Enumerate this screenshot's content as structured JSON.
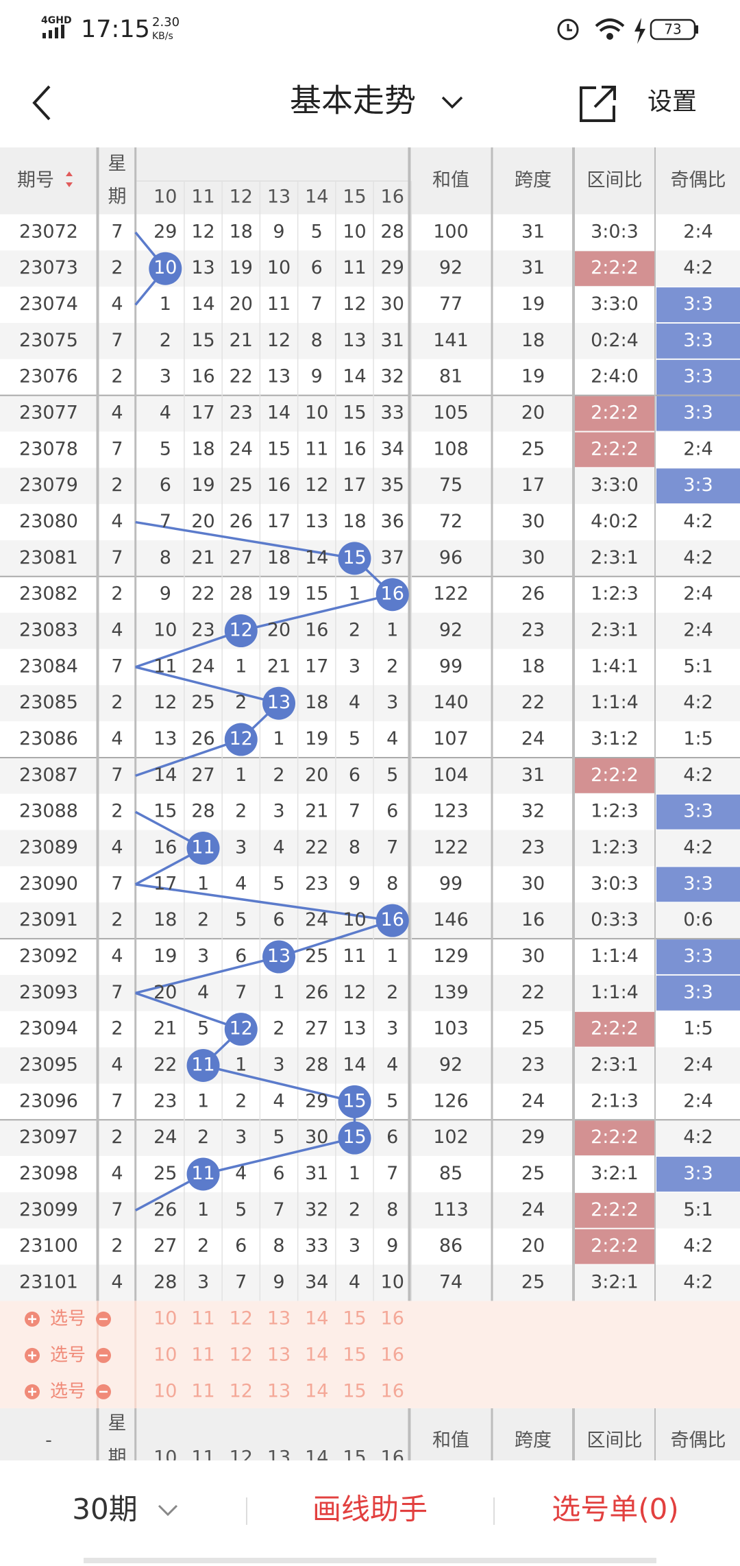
{
  "status_bar": {
    "network": "4GHD",
    "time": "17:15",
    "speed": "2.30",
    "speed_unit": "KB/s",
    "battery": "73"
  },
  "header": {
    "title": "基本走势",
    "action": "设置"
  },
  "table": {
    "headers": {
      "issue": "期号",
      "weekday": [
        "星",
        "期"
      ],
      "numbers": [
        "10",
        "11",
        "12",
        "13",
        "14",
        "15",
        "16"
      ],
      "sum": "和值",
      "span": "跨度",
      "zone_ratio": "区间比",
      "odd_even": "奇偶比"
    },
    "rows": [
      {
        "issue": "23072",
        "weekday": "7",
        "cells": [
          "29",
          "12",
          "18",
          "9",
          "5",
          "10",
          "28"
        ],
        "sum": "100",
        "span": "31",
        "zone": "3:0:3",
        "odd_even": "2:4"
      },
      {
        "issue": "23073",
        "weekday": "2",
        "cells": [
          "10",
          "13",
          "19",
          "10",
          "6",
          "11",
          "29"
        ],
        "hit": 0,
        "sum": "92",
        "span": "31",
        "zone": "2:2:2",
        "zone_color": "#d39192",
        "odd_even": "4:2"
      },
      {
        "issue": "23074",
        "weekday": "4",
        "cells": [
          "1",
          "14",
          "20",
          "11",
          "7",
          "12",
          "30"
        ],
        "sum": "77",
        "span": "19",
        "zone": "3:3:0",
        "odd_even": "3:3",
        "oe_color": "#7b92d3"
      },
      {
        "issue": "23075",
        "weekday": "7",
        "cells": [
          "2",
          "15",
          "21",
          "12",
          "8",
          "13",
          "31"
        ],
        "sum": "141",
        "span": "18",
        "zone": "0:2:4",
        "odd_even": "3:3",
        "oe_color": "#7b92d3"
      },
      {
        "issue": "23076",
        "weekday": "2",
        "cells": [
          "3",
          "16",
          "22",
          "13",
          "9",
          "14",
          "32"
        ],
        "sum": "81",
        "span": "19",
        "zone": "2:4:0",
        "odd_even": "3:3",
        "oe_color": "#7b92d3"
      },
      {
        "issue": "23077",
        "weekday": "4",
        "cells": [
          "4",
          "17",
          "23",
          "14",
          "10",
          "15",
          "33"
        ],
        "sum": "105",
        "span": "20",
        "zone": "2:2:2",
        "zone_color": "#d39192",
        "odd_even": "3:3",
        "oe_color": "#7b92d3"
      },
      {
        "issue": "23078",
        "weekday": "7",
        "cells": [
          "5",
          "18",
          "24",
          "15",
          "11",
          "16",
          "34"
        ],
        "sum": "108",
        "span": "25",
        "zone": "2:2:2",
        "zone_color": "#d39192",
        "odd_even": "2:4"
      },
      {
        "issue": "23079",
        "weekday": "2",
        "cells": [
          "6",
          "19",
          "25",
          "16",
          "12",
          "17",
          "35"
        ],
        "sum": "75",
        "span": "17",
        "zone": "3:3:0",
        "odd_even": "3:3",
        "oe_color": "#7b92d3"
      },
      {
        "issue": "23080",
        "weekday": "4",
        "cells": [
          "7",
          "20",
          "26",
          "17",
          "13",
          "18",
          "36"
        ],
        "sum": "72",
        "span": "30",
        "zone": "4:0:2",
        "odd_even": "4:2"
      },
      {
        "issue": "23081",
        "weekday": "7",
        "cells": [
          "8",
          "21",
          "27",
          "18",
          "14",
          "15",
          "37"
        ],
        "hit": 5,
        "sum": "96",
        "span": "30",
        "zone": "2:3:1",
        "odd_even": "4:2"
      },
      {
        "issue": "23082",
        "weekday": "2",
        "cells": [
          "9",
          "22",
          "28",
          "19",
          "15",
          "1",
          "16"
        ],
        "hit": 6,
        "sum": "122",
        "span": "26",
        "zone": "1:2:3",
        "odd_even": "2:4"
      },
      {
        "issue": "23083",
        "weekday": "4",
        "cells": [
          "10",
          "23",
          "12",
          "20",
          "16",
          "2",
          "1"
        ],
        "hit": 2,
        "sum": "92",
        "span": "23",
        "zone": "2:3:1",
        "odd_even": "2:4"
      },
      {
        "issue": "23084",
        "weekday": "7",
        "cells": [
          "11",
          "24",
          "1",
          "21",
          "17",
          "3",
          "2"
        ],
        "sum": "99",
        "span": "18",
        "zone": "1:4:1",
        "odd_even": "5:1"
      },
      {
        "issue": "23085",
        "weekday": "2",
        "cells": [
          "12",
          "25",
          "2",
          "13",
          "18",
          "4",
          "3"
        ],
        "hit": 3,
        "sum": "140",
        "span": "22",
        "zone": "1:1:4",
        "odd_even": "4:2"
      },
      {
        "issue": "23086",
        "weekday": "4",
        "cells": [
          "13",
          "26",
          "12",
          "1",
          "19",
          "5",
          "4"
        ],
        "hit": 2,
        "sum": "107",
        "span": "24",
        "zone": "3:1:2",
        "odd_even": "1:5"
      },
      {
        "issue": "23087",
        "weekday": "7",
        "cells": [
          "14",
          "27",
          "1",
          "2",
          "20",
          "6",
          "5"
        ],
        "sum": "104",
        "span": "31",
        "zone": "2:2:2",
        "zone_color": "#d39192",
        "odd_even": "4:2"
      },
      {
        "issue": "23088",
        "weekday": "2",
        "cells": [
          "15",
          "28",
          "2",
          "3",
          "21",
          "7",
          "6"
        ],
        "sum": "123",
        "span": "32",
        "zone": "1:2:3",
        "odd_even": "3:3",
        "oe_color": "#7b92d3"
      },
      {
        "issue": "23089",
        "weekday": "4",
        "cells": [
          "16",
          "11",
          "3",
          "4",
          "22",
          "8",
          "7"
        ],
        "hit": 1,
        "sum": "122",
        "span": "23",
        "zone": "1:2:3",
        "odd_even": "4:2"
      },
      {
        "issue": "23090",
        "weekday": "7",
        "cells": [
          "17",
          "1",
          "4",
          "5",
          "23",
          "9",
          "8"
        ],
        "sum": "99",
        "span": "30",
        "zone": "3:0:3",
        "odd_even": "3:3",
        "oe_color": "#7b92d3"
      },
      {
        "issue": "23091",
        "weekday": "2",
        "cells": [
          "18",
          "2",
          "5",
          "6",
          "24",
          "10",
          "16"
        ],
        "hit": 6,
        "sum": "146",
        "span": "16",
        "zone": "0:3:3",
        "odd_even": "0:6"
      },
      {
        "issue": "23092",
        "weekday": "4",
        "cells": [
          "19",
          "3",
          "6",
          "13",
          "25",
          "11",
          "1"
        ],
        "hit": 3,
        "sum": "129",
        "span": "30",
        "zone": "1:1:4",
        "odd_even": "3:3",
        "oe_color": "#7b92d3"
      },
      {
        "issue": "23093",
        "weekday": "7",
        "cells": [
          "20",
          "4",
          "7",
          "1",
          "26",
          "12",
          "2"
        ],
        "sum": "139",
        "span": "22",
        "zone": "1:1:4",
        "odd_even": "3:3",
        "oe_color": "#7b92d3"
      },
      {
        "issue": "23094",
        "weekday": "2",
        "cells": [
          "21",
          "5",
          "12",
          "2",
          "27",
          "13",
          "3"
        ],
        "hit": 2,
        "sum": "103",
        "span": "25",
        "zone": "2:2:2",
        "zone_color": "#d39192",
        "odd_even": "1:5"
      },
      {
        "issue": "23095",
        "weekday": "4",
        "cells": [
          "22",
          "11",
          "1",
          "3",
          "28",
          "14",
          "4"
        ],
        "hit": 1,
        "sum": "92",
        "span": "23",
        "zone": "2:3:1",
        "odd_even": "2:4"
      },
      {
        "issue": "23096",
        "weekday": "7",
        "cells": [
          "23",
          "1",
          "2",
          "4",
          "29",
          "15",
          "5"
        ],
        "hit": 5,
        "sum": "126",
        "span": "24",
        "zone": "2:1:3",
        "odd_even": "2:4"
      },
      {
        "issue": "23097",
        "weekday": "2",
        "cells": [
          "24",
          "2",
          "3",
          "5",
          "30",
          "15",
          "6"
        ],
        "hit": 5,
        "sum": "102",
        "span": "29",
        "zone": "2:2:2",
        "zone_color": "#d39192",
        "odd_even": "4:2"
      },
      {
        "issue": "23098",
        "weekday": "4",
        "cells": [
          "25",
          "11",
          "4",
          "6",
          "31",
          "1",
          "7"
        ],
        "hit": 1,
        "sum": "85",
        "span": "25",
        "zone": "3:2:1",
        "odd_even": "3:3",
        "oe_color": "#7b92d3"
      },
      {
        "issue": "23099",
        "weekday": "7",
        "cells": [
          "26",
          "1",
          "5",
          "7",
          "32",
          "2",
          "8"
        ],
        "sum": "113",
        "span": "24",
        "zone": "2:2:2",
        "zone_color": "#d39192",
        "odd_even": "5:1"
      },
      {
        "issue": "23100",
        "weekday": "2",
        "cells": [
          "27",
          "2",
          "6",
          "8",
          "33",
          "3",
          "9"
        ],
        "sum": "86",
        "span": "20",
        "zone": "2:2:2",
        "zone_color": "#d39192",
        "odd_even": "4:2"
      },
      {
        "issue": "23101",
        "weekday": "4",
        "cells": [
          "28",
          "3",
          "7",
          "9",
          "34",
          "4",
          "10"
        ],
        "sum": "74",
        "span": "25",
        "zone": "3:2:1",
        "odd_even": "4:2"
      }
    ],
    "selector_rows": [
      "选号",
      "选号",
      "选号"
    ],
    "footer_issue": "-"
  },
  "bottom_bar": {
    "periods": "30期",
    "draw_helper": "画线助手",
    "pick_list": "选号单(0)"
  }
}
